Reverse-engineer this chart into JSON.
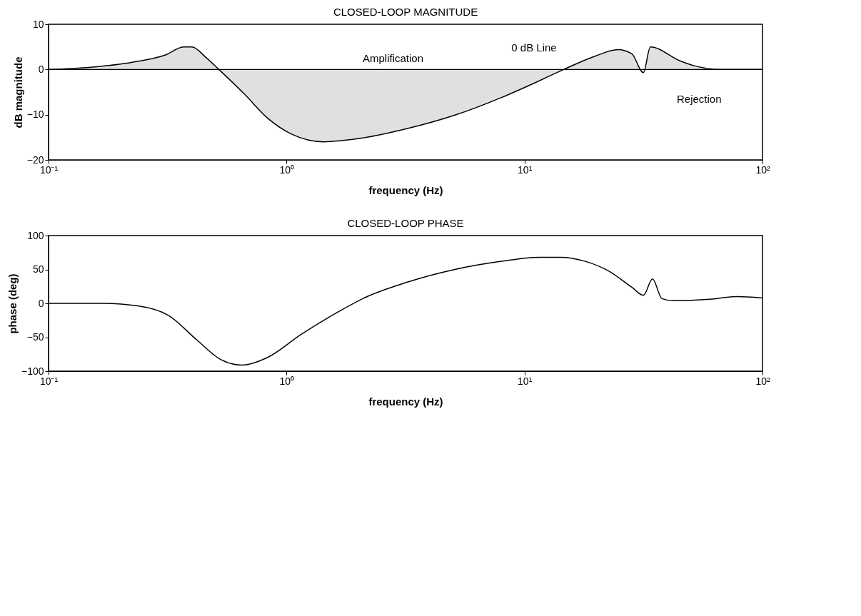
{
  "chart_data": [
    {
      "type": "area",
      "title": "CLOSED-LOOP MAGNITUDE",
      "xlabel": "frequency (Hz)",
      "ylabel": "dB magnitude",
      "color": "#000000",
      "log": "x",
      "x": [
        0.1,
        0.15,
        0.225,
        0.31,
        0.37,
        0.4,
        0.46,
        0.52,
        0.67,
        0.83,
        1.05,
        1.43,
        2.06,
        3.2,
        5.1,
        8,
        10.9,
        14.6,
        19.7,
        24.7,
        28.2,
        31.6,
        33.8,
        45,
        51,
        67,
        100
      ],
      "values": [
        0,
        0.5,
        1.6,
        3.2,
        5,
        5,
        2.6,
        0,
        -5.6,
        -10.7,
        -14.3,
        -16,
        -15.2,
        -13.1,
        -10.1,
        -6.2,
        -3.1,
        0,
        2.9,
        4.4,
        3.5,
        -0.7,
        5,
        1.9,
        0.9,
        0,
        0
      ],
      "xlim": [
        0.1,
        100
      ],
      "xticks": [
        {
          "value": 0.1,
          "label": "10⁻¹"
        },
        {
          "value": 1,
          "label": "10⁰"
        },
        {
          "value": 10,
          "label": "10¹"
        },
        {
          "value": 100,
          "label": "10²"
        }
      ],
      "ylim": [
        -20,
        10
      ],
      "yticks": [
        -20,
        -10,
        0,
        10
      ],
      "ref_lines": [
        {
          "axis": "y",
          "value": 0,
          "label": "0 dB Line"
        }
      ],
      "annotations": [
        "Amplification",
        "Rejection"
      ]
    },
    {
      "type": "line",
      "title": "CLOSED-LOOP PHASE",
      "xlabel": "frequency (Hz)",
      "ylabel": "phase (deg)",
      "color": "#000000",
      "log": "x",
      "x": [
        0.1,
        0.17,
        0.24,
        0.32,
        0.42,
        0.53,
        0.65,
        0.83,
        1.15,
        1.64,
        2.15,
        3.2,
        5.1,
        8,
        11.5,
        14.3,
        18,
        22.5,
        28.2,
        31.6,
        34.5,
        37.8,
        42,
        60,
        78,
        100
      ],
      "values": [
        0,
        0,
        -4,
        -18,
        -54,
        -83,
        -91,
        -80,
        -46,
        -13,
        9,
        31,
        50,
        62,
        68,
        68,
        62,
        48,
        24,
        12,
        36,
        7,
        4,
        6,
        10,
        8
      ],
      "xlim": [
        0.1,
        100
      ],
      "xticks": [
        {
          "value": 0.1,
          "label": "10⁻¹"
        },
        {
          "value": 1,
          "label": "10⁰"
        },
        {
          "value": 10,
          "label": "10¹"
        },
        {
          "value": 100,
          "label": "10²"
        }
      ],
      "ylim": [
        -100,
        100
      ],
      "yticks": [
        -100,
        -50,
        0,
        50,
        100
      ]
    }
  ]
}
